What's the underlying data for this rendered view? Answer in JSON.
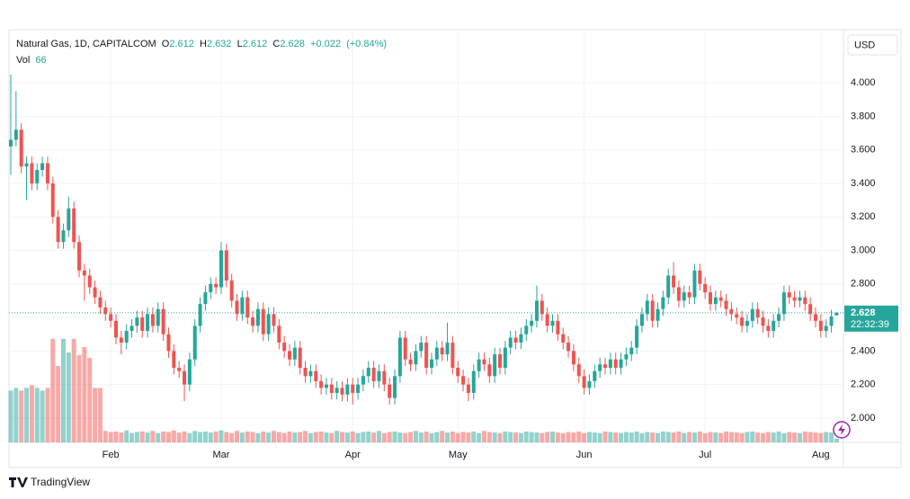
{
  "chart_data": {
    "type": "candlestick",
    "title": "Natural Gas, 1D, CAPITALCOM",
    "legend": {
      "o_label": "O",
      "open": 2.612,
      "h_label": "H",
      "high": 2.632,
      "l_label": "L",
      "low": 2.612,
      "c_label": "C",
      "close": 2.628,
      "change": {
        "value": 0.022,
        "label": "+0.022"
      },
      "change_pct": {
        "value": 0.84,
        "label": "(+0.84%)"
      }
    },
    "volume_legend": {
      "label": "Vol",
      "value": 66
    },
    "currency": "USD",
    "last_price": 2.628,
    "countdown": "22:32:39",
    "brand": "TradingView",
    "up_color": "#26a69a",
    "down_color": "#ef5350",
    "grid": true,
    "xlim": [
      -0.34,
      158.3
    ],
    "xticks": [
      {
        "value": 19,
        "label": "Feb"
      },
      {
        "value": 40,
        "label": "Mar"
      },
      {
        "value": 65,
        "label": "Apr"
      },
      {
        "value": 85,
        "label": "May"
      },
      {
        "value": 109,
        "label": "Jun"
      },
      {
        "value": 132,
        "label": "Jul"
      },
      {
        "value": 154,
        "label": "Aug"
      }
    ],
    "ylim": [
      1.855,
      4.306
    ],
    "yticks": [
      {
        "value": 2.0,
        "label": "2.000"
      },
      {
        "value": 2.2,
        "label": "2.200"
      },
      {
        "value": 2.4,
        "label": "2.400"
      },
      {
        "value": 2.6,
        "label": "2.600"
      },
      {
        "value": 2.8,
        "label": "2.800"
      },
      {
        "value": 3.0,
        "label": "3.000"
      },
      {
        "value": 3.2,
        "label": "3.200"
      },
      {
        "value": 3.4,
        "label": "3.400"
      },
      {
        "value": 3.6,
        "label": "3.600"
      },
      {
        "value": 3.8,
        "label": "3.800"
      },
      {
        "value": 4.0,
        "label": "4.000"
      }
    ],
    "volume_lim": [
      0,
      2640
    ],
    "open": [
      3.62,
      3.66,
      3.72,
      3.5,
      3.52,
      3.4,
      3.48,
      3.52,
      3.4,
      3.2,
      3.05,
      3.12,
      3.25,
      3.05,
      2.88,
      2.85,
      2.78,
      2.72,
      2.66,
      2.62,
      2.58,
      2.48,
      2.45,
      2.52,
      2.55,
      2.6,
      2.52,
      2.62,
      2.55,
      2.65,
      2.5,
      2.4,
      2.3,
      2.28,
      2.2,
      2.35,
      2.55,
      2.68,
      2.75,
      2.8,
      2.78,
      3.0,
      2.82,
      2.7,
      2.62,
      2.72,
      2.6,
      2.55,
      2.65,
      2.5,
      2.62,
      2.55,
      2.45,
      2.4,
      2.35,
      2.42,
      2.3,
      2.25,
      2.28,
      2.22,
      2.18,
      2.2,
      2.15,
      2.18,
      2.14,
      2.2,
      2.15,
      2.2,
      2.25,
      2.3,
      2.22,
      2.28,
      2.2,
      2.12,
      2.25,
      2.48,
      2.35,
      2.32,
      2.4,
      2.45,
      2.3,
      2.35,
      2.42,
      2.38,
      2.45,
      2.3,
      2.25,
      2.2,
      2.15,
      2.28,
      2.35,
      2.32,
      2.25,
      2.38,
      2.3,
      2.42,
      2.48,
      2.45,
      2.5,
      2.55,
      2.58,
      2.7,
      2.62,
      2.55,
      2.58,
      2.5,
      2.45,
      2.4,
      2.32,
      2.25,
      2.18,
      2.22,
      2.28,
      2.32,
      2.3,
      2.35,
      2.3,
      2.35,
      2.38,
      2.42,
      2.55,
      2.62,
      2.7,
      2.58,
      2.65,
      2.72,
      2.85,
      2.78,
      2.7,
      2.75,
      2.72,
      2.88,
      2.8,
      2.75,
      2.68,
      2.72,
      2.7,
      2.65,
      2.62,
      2.6,
      2.55,
      2.58,
      2.65,
      2.6,
      2.55,
      2.52,
      2.58,
      2.62,
      2.75,
      2.72,
      2.7,
      2.72,
      2.68,
      2.62,
      2.58,
      2.52,
      2.55,
      2.612
    ],
    "high": [
      4.05,
      3.95,
      3.76,
      3.56,
      3.56,
      3.52,
      3.56,
      3.56,
      3.44,
      3.24,
      3.16,
      3.32,
      3.29,
      3.09,
      2.92,
      2.89,
      2.82,
      2.76,
      2.7,
      2.66,
      2.62,
      2.52,
      2.56,
      2.59,
      2.64,
      2.64,
      2.66,
      2.66,
      2.69,
      2.69,
      2.54,
      2.44,
      2.34,
      2.32,
      2.39,
      2.59,
      2.72,
      2.79,
      2.84,
      2.84,
      3.05,
      3.04,
      2.86,
      2.74,
      2.76,
      2.76,
      2.64,
      2.69,
      2.69,
      2.66,
      2.66,
      2.59,
      2.49,
      2.44,
      2.46,
      2.46,
      2.34,
      2.32,
      2.32,
      2.26,
      2.24,
      2.24,
      2.22,
      2.22,
      2.24,
      2.24,
      2.24,
      2.29,
      2.34,
      2.34,
      2.32,
      2.32,
      2.24,
      2.29,
      2.52,
      2.52,
      2.39,
      2.44,
      2.49,
      2.49,
      2.39,
      2.46,
      2.46,
      2.57,
      2.49,
      2.34,
      2.29,
      2.24,
      2.32,
      2.39,
      2.39,
      2.36,
      2.42,
      2.42,
      2.46,
      2.52,
      2.52,
      2.54,
      2.59,
      2.62,
      2.79,
      2.74,
      2.66,
      2.62,
      2.62,
      2.54,
      2.49,
      2.44,
      2.36,
      2.29,
      2.26,
      2.32,
      2.36,
      2.36,
      2.39,
      2.39,
      2.39,
      2.42,
      2.46,
      2.59,
      2.66,
      2.74,
      2.74,
      2.69,
      2.76,
      2.89,
      2.93,
      2.82,
      2.79,
      2.79,
      2.92,
      2.92,
      2.84,
      2.79,
      2.76,
      2.76,
      2.74,
      2.69,
      2.66,
      2.64,
      2.62,
      2.69,
      2.69,
      2.64,
      2.59,
      2.62,
      2.66,
      2.79,
      2.79,
      2.76,
      2.76,
      2.76,
      2.72,
      2.66,
      2.62,
      2.59,
      2.646,
      2.632
    ],
    "low": [
      3.45,
      3.62,
      3.46,
      3.3,
      3.36,
      3.36,
      3.44,
      3.36,
      3.16,
      3.01,
      3.01,
      3.08,
      3.01,
      2.84,
      2.7,
      2.74,
      2.68,
      2.62,
      2.58,
      2.54,
      2.44,
      2.38,
      2.41,
      2.48,
      2.51,
      2.48,
      2.48,
      2.51,
      2.51,
      2.46,
      2.36,
      2.26,
      2.24,
      2.1,
      2.16,
      2.31,
      2.51,
      2.64,
      2.71,
      2.74,
      2.74,
      2.78,
      2.66,
      2.58,
      2.58,
      2.56,
      2.51,
      2.51,
      2.46,
      2.46,
      2.51,
      2.41,
      2.36,
      2.31,
      2.31,
      2.26,
      2.21,
      2.21,
      2.18,
      2.14,
      2.14,
      2.11,
      2.11,
      2.1,
      2.1,
      2.08,
      2.11,
      2.16,
      2.21,
      2.18,
      2.18,
      2.16,
      2.08,
      2.08,
      2.21,
      2.31,
      2.28,
      2.28,
      2.36,
      2.26,
      2.26,
      2.31,
      2.34,
      2.34,
      2.26,
      2.21,
      2.16,
      2.1,
      2.11,
      2.24,
      2.28,
      2.21,
      2.21,
      2.26,
      2.26,
      2.38,
      2.41,
      2.41,
      2.46,
      2.51,
      2.54,
      2.58,
      2.51,
      2.51,
      2.46,
      2.41,
      2.36,
      2.28,
      2.21,
      2.14,
      2.14,
      2.18,
      2.24,
      2.26,
      2.26,
      2.26,
      2.26,
      2.31,
      2.34,
      2.38,
      2.51,
      2.58,
      2.54,
      2.54,
      2.61,
      2.68,
      2.74,
      2.66,
      2.66,
      2.68,
      2.68,
      2.76,
      2.71,
      2.64,
      2.64,
      2.66,
      2.61,
      2.58,
      2.56,
      2.51,
      2.51,
      2.54,
      2.56,
      2.51,
      2.48,
      2.48,
      2.54,
      2.58,
      2.68,
      2.66,
      2.66,
      2.64,
      2.58,
      2.54,
      2.48,
      2.48,
      2.51,
      2.612
    ],
    "close": [
      3.66,
      3.72,
      3.5,
      3.52,
      3.4,
      3.48,
      3.52,
      3.4,
      3.2,
      3.05,
      3.12,
      3.25,
      3.05,
      2.88,
      2.85,
      2.78,
      2.72,
      2.66,
      2.62,
      2.58,
      2.48,
      2.45,
      2.52,
      2.55,
      2.6,
      2.52,
      2.62,
      2.55,
      2.65,
      2.5,
      2.4,
      2.3,
      2.28,
      2.2,
      2.35,
      2.55,
      2.68,
      2.75,
      2.8,
      2.78,
      3.0,
      2.82,
      2.7,
      2.62,
      2.72,
      2.6,
      2.55,
      2.65,
      2.5,
      2.62,
      2.55,
      2.45,
      2.4,
      2.35,
      2.42,
      2.3,
      2.25,
      2.28,
      2.22,
      2.18,
      2.2,
      2.15,
      2.18,
      2.14,
      2.2,
      2.15,
      2.2,
      2.25,
      2.3,
      2.22,
      2.28,
      2.2,
      2.12,
      2.25,
      2.48,
      2.35,
      2.32,
      2.4,
      2.45,
      2.3,
      2.35,
      2.42,
      2.38,
      2.45,
      2.3,
      2.25,
      2.2,
      2.15,
      2.28,
      2.35,
      2.32,
      2.25,
      2.38,
      2.3,
      2.42,
      2.48,
      2.45,
      2.5,
      2.55,
      2.58,
      2.7,
      2.62,
      2.55,
      2.58,
      2.5,
      2.45,
      2.4,
      2.32,
      2.25,
      2.18,
      2.22,
      2.28,
      2.32,
      2.3,
      2.35,
      2.3,
      2.35,
      2.38,
      2.42,
      2.55,
      2.62,
      2.7,
      2.58,
      2.65,
      2.72,
      2.85,
      2.78,
      2.7,
      2.75,
      2.72,
      2.88,
      2.8,
      2.75,
      2.68,
      2.72,
      2.7,
      2.65,
      2.62,
      2.6,
      2.55,
      2.58,
      2.65,
      2.6,
      2.55,
      2.52,
      2.58,
      2.62,
      2.75,
      2.72,
      2.7,
      2.72,
      2.68,
      2.62,
      2.58,
      2.52,
      2.55,
      2.606,
      2.628
    ],
    "volume": [
      950,
      1000,
      950,
      1000,
      1050,
      1000,
      950,
      1000,
      1900,
      1400,
      1900,
      1650,
      1900,
      1600,
      1750,
      1550,
      1000,
      1000,
      210,
      190,
      200,
      180,
      220,
      170,
      190,
      200,
      180,
      210,
      170,
      200,
      190,
      220,
      180,
      200,
      170,
      210,
      190,
      200,
      180,
      200,
      220,
      190,
      170,
      210,
      180,
      200,
      190,
      170,
      200,
      180,
      210,
      190,
      170,
      200,
      180,
      190,
      210,
      170,
      190,
      200,
      180,
      170,
      210,
      190,
      180,
      200,
      170,
      190,
      200,
      180,
      210,
      170,
      190,
      200,
      180,
      170,
      190,
      210,
      180,
      200,
      170,
      190,
      210,
      180,
      200,
      170,
      190,
      180,
      200,
      170,
      210,
      190,
      180,
      170,
      200,
      190,
      180,
      170,
      200,
      190,
      180,
      170,
      190,
      200,
      180,
      170,
      190,
      180,
      200,
      170,
      190,
      180,
      170,
      200,
      190,
      180,
      170,
      190,
      180,
      200,
      170,
      190,
      180,
      170,
      200,
      190,
      180,
      200,
      170,
      190,
      180,
      200,
      170,
      190,
      180,
      170,
      200,
      190,
      180,
      170,
      190,
      200,
      180,
      170,
      190,
      180,
      200,
      170,
      190,
      180,
      170,
      200,
      190,
      180,
      170,
      190,
      180,
      66
    ]
  }
}
